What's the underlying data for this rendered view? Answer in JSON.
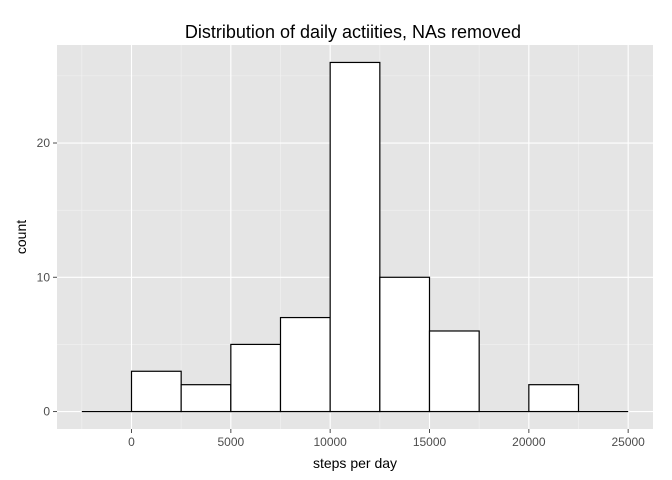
{
  "chart_data": {
    "type": "bar",
    "title": "Distribution of daily actiities, NAs removed",
    "xlabel": "steps per day",
    "ylabel": "count",
    "xlim": [
      -3750,
      26250
    ],
    "ylim": [
      -1.3,
      27.3
    ],
    "x_ticks": [
      0,
      5000,
      10000,
      15000,
      20000,
      25000
    ],
    "y_ticks": [
      0,
      10,
      20
    ],
    "binwidth": 2500,
    "bins": [
      {
        "x_start": -2500,
        "x_end": 0,
        "count": 0
      },
      {
        "x_start": 0,
        "x_end": 2500,
        "count": 3
      },
      {
        "x_start": 2500,
        "x_end": 5000,
        "count": 2
      },
      {
        "x_start": 5000,
        "x_end": 7500,
        "count": 5
      },
      {
        "x_start": 7500,
        "x_end": 10000,
        "count": 7
      },
      {
        "x_start": 10000,
        "x_end": 12500,
        "count": 26
      },
      {
        "x_start": 12500,
        "x_end": 15000,
        "count": 10
      },
      {
        "x_start": 15000,
        "x_end": 17500,
        "count": 6
      },
      {
        "x_start": 17500,
        "x_end": 20000,
        "count": 0
      },
      {
        "x_start": 20000,
        "x_end": 22500,
        "count": 2
      },
      {
        "x_start": 22500,
        "x_end": 25000,
        "count": 0
      }
    ],
    "colors": {
      "panel": "#e5e5e5",
      "grid": "#ffffff",
      "bar_fill": "#ffffff",
      "bar_outline": "#000000"
    },
    "grid": true,
    "legend": "none"
  }
}
